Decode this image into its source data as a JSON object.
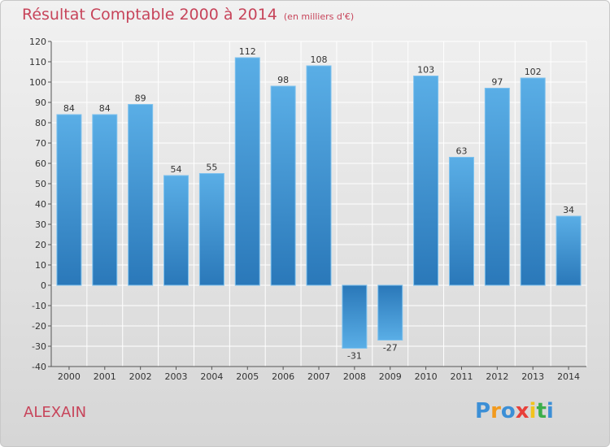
{
  "chart_data": {
    "type": "bar",
    "title": "Résultat Comptable 2000 à 2014",
    "subtitle": "(en milliers d'€)",
    "categories": [
      "2000",
      "2001",
      "2002",
      "2003",
      "2004",
      "2005",
      "2006",
      "2007",
      "2008",
      "2009",
      "2010",
      "2011",
      "2012",
      "2013",
      "2014"
    ],
    "values": [
      84,
      84,
      89,
      54,
      55,
      112,
      98,
      108,
      -31,
      -27,
      103,
      63,
      97,
      102,
      34
    ],
    "ylim": [
      -40,
      120
    ],
    "yticks": [
      120,
      110,
      100,
      90,
      80,
      70,
      60,
      50,
      40,
      30,
      20,
      10,
      0,
      -10,
      -20,
      -30,
      -40
    ],
    "grid": true,
    "xlabel": "",
    "ylabel": ""
  },
  "commune": "ALEXAIN",
  "logo": {
    "letters": [
      "P",
      "r",
      "o",
      "x",
      "i",
      "t",
      "i"
    ],
    "colors": [
      "#3c8fd6",
      "#f29a1d",
      "#3c8fd6",
      "#e8403a",
      "#f2c31d",
      "#3cae4a",
      "#3c8fd6"
    ]
  },
  "colors": {
    "bar_light": "#5aaee6",
    "bar_dark": "#2a78b9",
    "text_accent": "#c7445a"
  }
}
